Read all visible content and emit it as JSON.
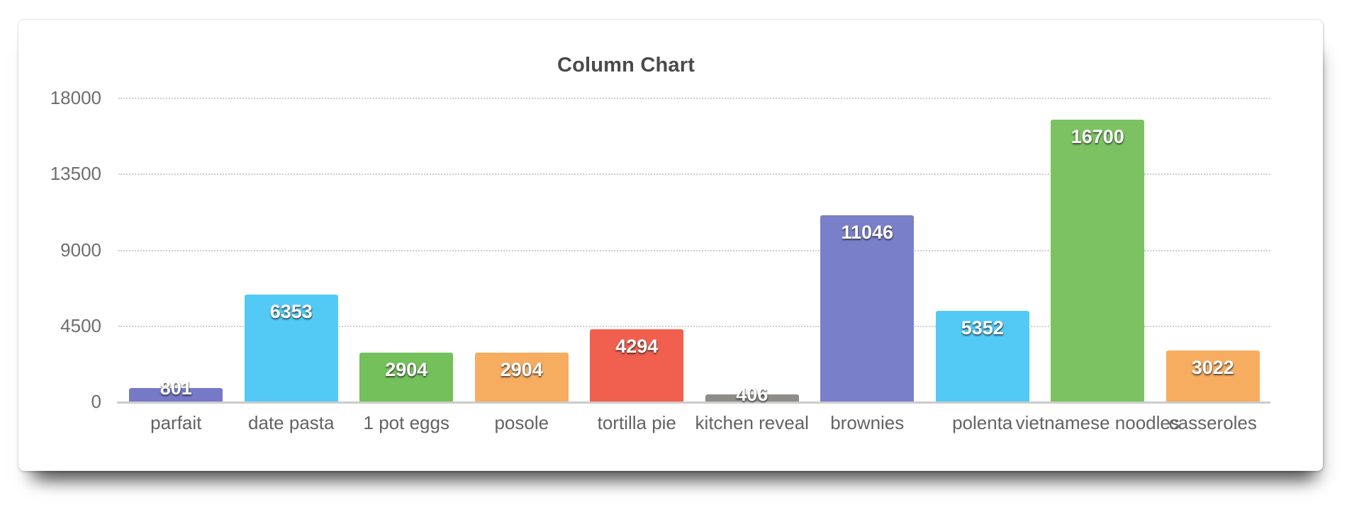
{
  "chart_data": {
    "type": "bar",
    "title": "Column Chart",
    "categories": [
      "parfait",
      "date pasta",
      "1 pot eggs",
      "posole",
      "tortilla pie",
      "kitchen reveal",
      "brownies",
      "polenta",
      "vietnamese noodles",
      "casseroles"
    ],
    "values": [
      801,
      6353,
      2904,
      2904,
      4294,
      406,
      11046,
      5352,
      16700,
      3022
    ],
    "bar_colors": [
      "#7579C7",
      "#53CAF5",
      "#74C05B",
      "#F6AD60",
      "#F15F4E",
      "#8E8D87",
      "#7A7FC9",
      "#53CAF5",
      "#7CC263",
      "#F6AD60"
    ],
    "ylim": [
      0,
      18000
    ],
    "yticks": [
      0,
      4500,
      9000,
      13500,
      18000
    ],
    "grid": "horizontal-dotted",
    "legend": "none",
    "xlabel": "",
    "ylabel": "",
    "value_label_color": "#ffffff",
    "axis_label_color": "#6e6e6e",
    "title_color": "#4a4a4a",
    "gridline_color": "#cdcdcd",
    "baseline_color": "#cbcbcb"
  }
}
